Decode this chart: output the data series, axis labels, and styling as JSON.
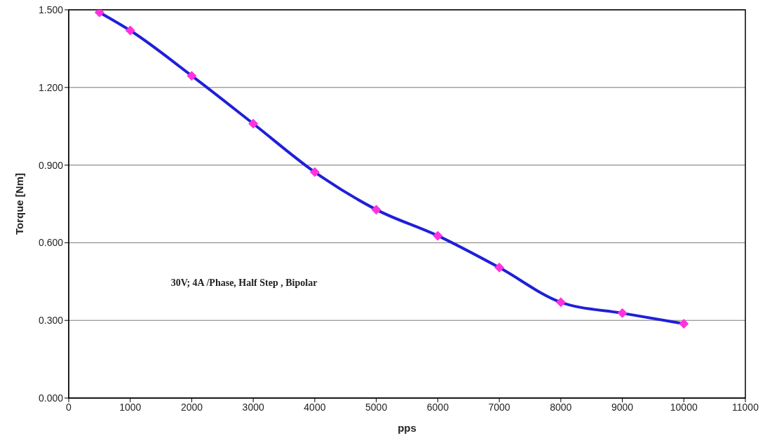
{
  "chart_data": {
    "type": "line",
    "xlabel": "pps",
    "ylabel": "Torque   [Nm]",
    "x": [
      500,
      1000,
      2000,
      3000,
      4000,
      5000,
      6000,
      7000,
      8000,
      9000,
      10000
    ],
    "series": [
      {
        "color": "#1f1fd8",
        "colors": [
          "#ff33dd",
          "#ff33dd",
          "#ff33dd",
          "#ff33dd",
          "#ff33dd",
          "#ff33dd",
          "#ff33dd",
          "#ff33dd",
          "#ff33dd",
          "#ff33dd",
          "#ff33dd"
        ],
        "values": [
          1.49,
          1.42,
          1.245,
          1.06,
          0.873,
          0.728,
          0.627,
          0.504,
          0.37,
          0.328,
          0.287
        ]
      }
    ],
    "xlim": [
      0,
      11000
    ],
    "xticks": [
      0,
      1000,
      2000,
      3000,
      4000,
      5000,
      6000,
      7000,
      8000,
      9000,
      10000,
      11000
    ],
    "ylim": [
      0,
      1.5
    ],
    "yticks": [
      {
        "value": 0,
        "label": "0.000"
      },
      {
        "value": 0.3,
        "label": "0.300"
      },
      {
        "value": 0.6,
        "label": "0.600"
      },
      {
        "value": 0.9,
        "label": "0.900"
      },
      {
        "value": 1.2,
        "label": "1.200"
      },
      {
        "value": 1.5,
        "label": "1.500"
      }
    ],
    "grid": "y",
    "marker": "diamond",
    "line_style": "solid",
    "annotations": [
      "30V;  4A /Phase,  Half Step , Bipolar"
    ]
  }
}
